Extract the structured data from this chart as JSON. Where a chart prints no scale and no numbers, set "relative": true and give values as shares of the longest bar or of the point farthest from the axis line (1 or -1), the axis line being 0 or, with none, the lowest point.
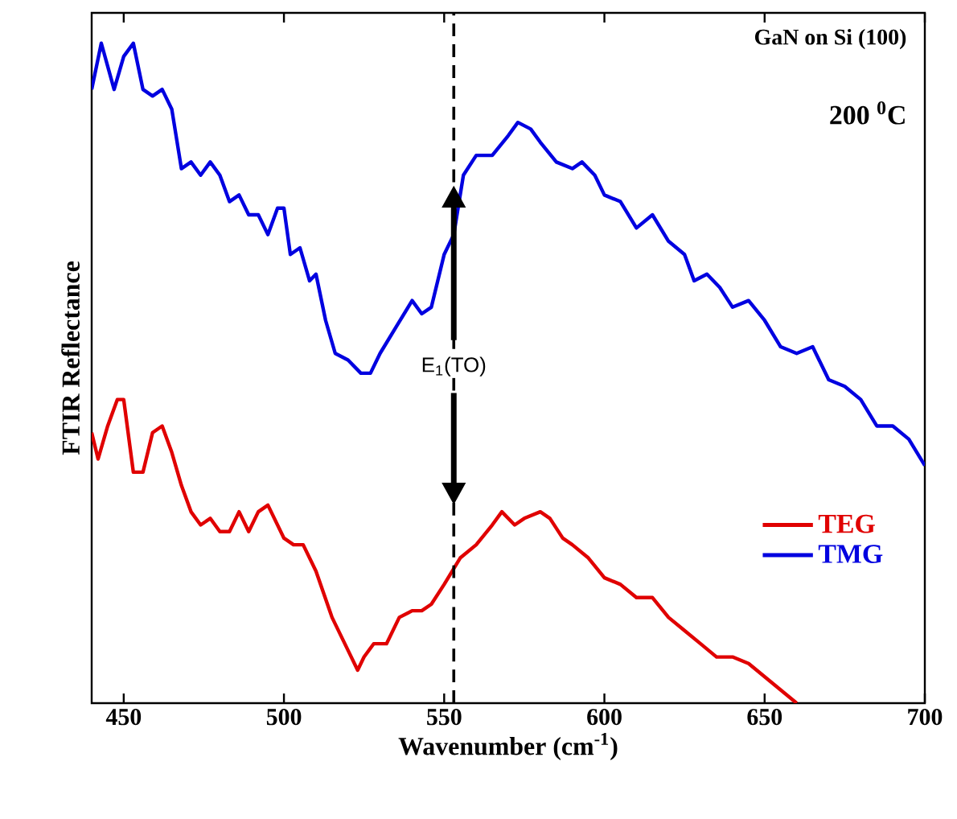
{
  "chart_data": {
    "type": "line",
    "relative": true,
    "xlabel": "Wavenumber (cm$^{-1}$)",
    "ylabel": "FTIR Reflectance",
    "xlim": [
      440,
      700
    ],
    "xticks": [
      450,
      500,
      550,
      600,
      650,
      700
    ],
    "tick_labels": "x",
    "grid": false,
    "legend": "bottom right",
    "line_style": "solid",
    "marker": "none",
    "annotations": [
      "GaN on Si (100)",
      "200 $^{0}$C"
    ],
    "ref_lines": [
      {
        "axis": "x",
        "value": 553,
        "label": "E$_{1}$(TO)",
        "line_style": "dashed",
        "color": "#000000"
      }
    ],
    "series": [
      {
        "name": "TEG",
        "color": "#e00000",
        "x": [
          440,
          442,
          445,
          448,
          450,
          453,
          456,
          459,
          462,
          465,
          468,
          471,
          474,
          477,
          480,
          483,
          486,
          489,
          492,
          495,
          498,
          500,
          503,
          506,
          510,
          515,
          520,
          523,
          525,
          528,
          532,
          536,
          540,
          543,
          546,
          550,
          555,
          560,
          565,
          568,
          572,
          575,
          580,
          583,
          587,
          590,
          595,
          600,
          605,
          610,
          615,
          620,
          625,
          630,
          635,
          640,
          645,
          650,
          655,
          660
        ],
        "values": [
          0.41,
          0.37,
          0.42,
          0.46,
          0.46,
          0.35,
          0.35,
          0.41,
          0.42,
          0.38,
          0.33,
          0.29,
          0.27,
          0.28,
          0.26,
          0.26,
          0.29,
          0.26,
          0.29,
          0.3,
          0.27,
          0.25,
          0.24,
          0.24,
          0.2,
          0.13,
          0.08,
          0.05,
          0.07,
          0.09,
          0.09,
          0.13,
          0.14,
          0.14,
          0.15,
          0.18,
          0.22,
          0.24,
          0.27,
          0.29,
          0.27,
          0.28,
          0.29,
          0.28,
          0.25,
          0.24,
          0.22,
          0.19,
          0.18,
          0.16,
          0.16,
          0.13,
          0.11,
          0.09,
          0.07,
          0.07,
          0.06,
          0.04,
          0.02,
          0
        ]
      },
      {
        "name": "TMG",
        "color": "#0000e0",
        "x": [
          440,
          443,
          447,
          450,
          453,
          456,
          459,
          462,
          465,
          468,
          471,
          474,
          477,
          480,
          483,
          486,
          489,
          492,
          495,
          498,
          500,
          502,
          505,
          508,
          510,
          513,
          516,
          520,
          524,
          527,
          530,
          535,
          540,
          543,
          546,
          550,
          553,
          556,
          560,
          565,
          570,
          573,
          577,
          580,
          585,
          590,
          593,
          597,
          600,
          605,
          610,
          615,
          620,
          625,
          628,
          632,
          636,
          640,
          645,
          650,
          655,
          660,
          665,
          670,
          675,
          680,
          685,
          690,
          695,
          700
        ],
        "values": [
          0.93,
          1.0,
          0.93,
          0.98,
          1.0,
          0.93,
          0.92,
          0.93,
          0.9,
          0.81,
          0.82,
          0.8,
          0.82,
          0.8,
          0.76,
          0.77,
          0.74,
          0.74,
          0.71,
          0.75,
          0.75,
          0.68,
          0.69,
          0.64,
          0.65,
          0.58,
          0.53,
          0.52,
          0.5,
          0.5,
          0.53,
          0.57,
          0.61,
          0.59,
          0.6,
          0.68,
          0.71,
          0.8,
          0.83,
          0.83,
          0.86,
          0.88,
          0.87,
          0.85,
          0.82,
          0.81,
          0.82,
          0.8,
          0.77,
          0.76,
          0.72,
          0.74,
          0.7,
          0.68,
          0.64,
          0.65,
          0.63,
          0.6,
          0.61,
          0.58,
          0.54,
          0.53,
          0.54,
          0.49,
          0.48,
          0.46,
          0.42,
          0.42,
          0.4,
          0.36
        ]
      }
    ]
  }
}
